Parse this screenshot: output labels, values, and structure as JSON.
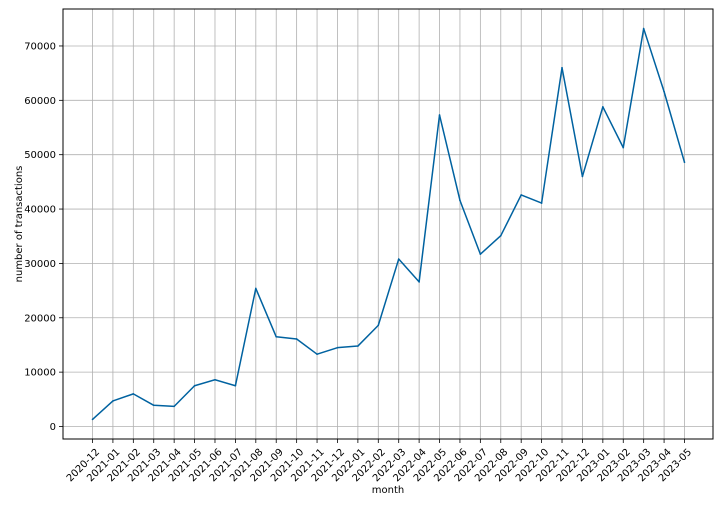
{
  "chart_data": {
    "type": "line",
    "title": "",
    "xlabel": "month",
    "ylabel": "number of transactions",
    "grid": true,
    "ylim": [
      -2300,
      76800
    ],
    "yticks": [
      0,
      10000,
      20000,
      30000,
      40000,
      50000,
      60000,
      70000
    ],
    "ytick_labels": [
      "0",
      "10000",
      "20000",
      "30000",
      "40000",
      "50000",
      "60000",
      "70000"
    ],
    "line_color": "#0062a0",
    "categories": [
      "2020-12",
      "2021-01",
      "2021-02",
      "2021-03",
      "2021-04",
      "2021-05",
      "2021-06",
      "2021-07",
      "2021-08",
      "2021-09",
      "2021-10",
      "2021-11",
      "2021-12",
      "2022-01",
      "2022-02",
      "2022-03",
      "2022-04",
      "2022-05",
      "2022-06",
      "2022-07",
      "2022-08",
      "2022-09",
      "2022-10",
      "2022-11",
      "2022-12",
      "2023-01",
      "2023-02",
      "2023-03",
      "2023-04",
      "2023-05"
    ],
    "series": [
      {
        "values": [
          1300,
          4700,
          6000,
          3900,
          3700,
          7500,
          8600,
          7500,
          25400,
          16500,
          16100,
          13300,
          14500,
          14800,
          18600,
          30800,
          26600,
          57300,
          41600,
          31700,
          35100,
          42600,
          41100,
          66000,
          46000,
          58800,
          51300,
          73200,
          61600,
          48600
        ]
      }
    ]
  }
}
